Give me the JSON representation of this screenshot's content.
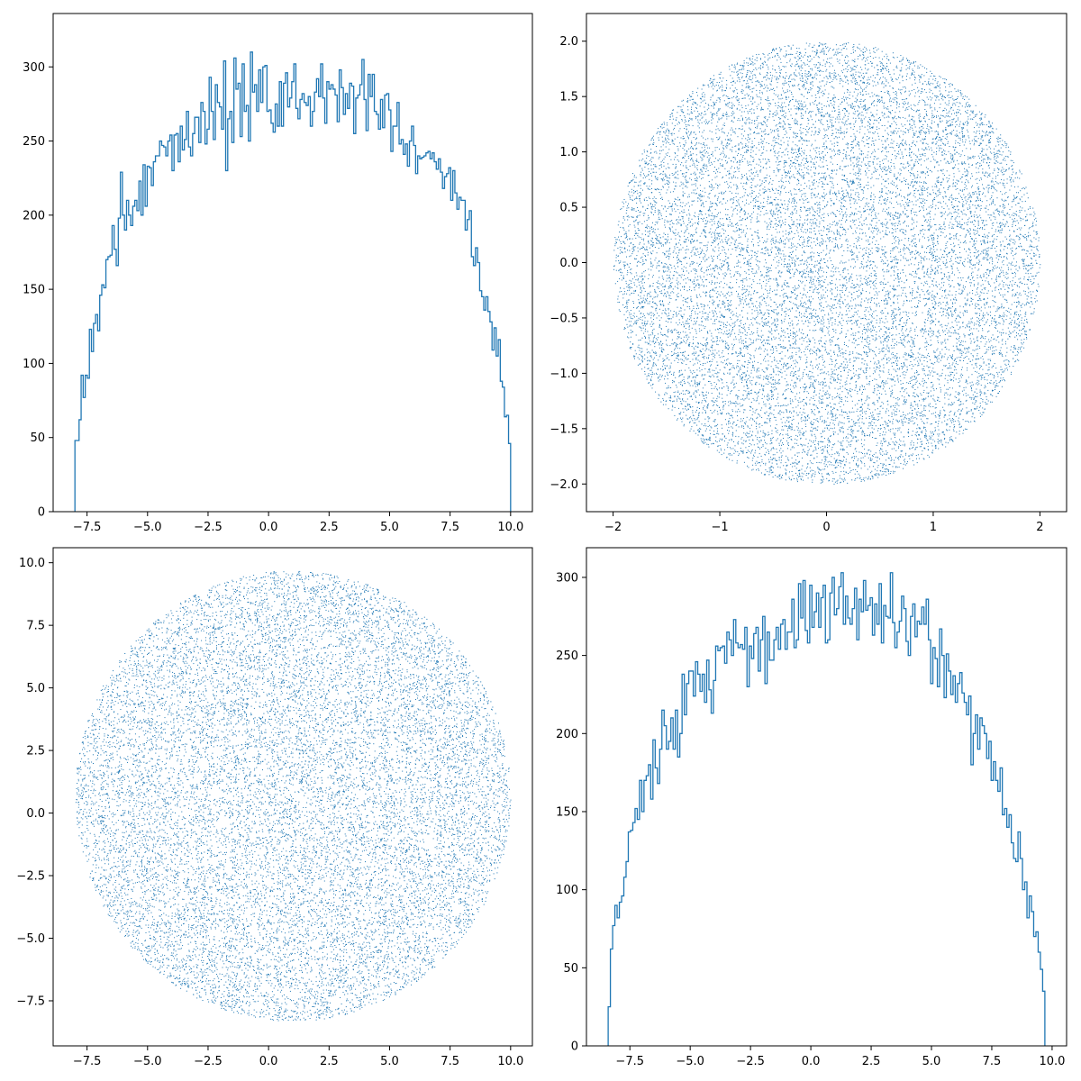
{
  "colors": {
    "series": "#1f77b4",
    "axes": "#000000",
    "background": "#ffffff"
  },
  "chart_data": [
    {
      "type": "histogram",
      "id": "top-left",
      "title": "",
      "xlabel": "",
      "ylabel": "",
      "grid": false,
      "xlim": [
        -8.9,
        10.9
      ],
      "ylim": [
        0,
        336
      ],
      "xticks": [
        -7.5,
        -5.0,
        -2.5,
        0.0,
        2.5,
        5.0,
        7.5,
        10.0
      ],
      "xtick_labels": [
        "−7.5",
        "−5.0",
        "−2.5",
        "0.0",
        "2.5",
        "5.0",
        "7.5",
        "10.0"
      ],
      "yticks": [
        0,
        50,
        100,
        150,
        200,
        250,
        300
      ],
      "ytick_labels": [
        "0",
        "50",
        "100",
        "150",
        "200",
        "250",
        "300"
      ],
      "bin_range": [
        -8.0,
        10.0
      ],
      "counts": [
        48,
        48,
        62,
        92,
        77,
        92,
        90,
        123,
        108,
        127,
        133,
        122,
        146,
        153,
        151,
        170,
        172,
        173,
        193,
        177,
        166,
        198,
        229,
        200,
        190,
        210,
        200,
        193,
        206,
        210,
        203,
        223,
        200,
        234,
        206,
        233,
        232,
        220,
        236,
        240,
        240,
        250,
        247,
        246,
        240,
        250,
        254,
        230,
        254,
        255,
        236,
        260,
        244,
        251,
        270,
        246,
        240,
        255,
        266,
        266,
        249,
        276,
        270,
        248,
        258,
        293,
        270,
        251,
        288,
        276,
        273,
        258,
        304,
        230,
        265,
        270,
        249,
        306,
        285,
        289,
        253,
        302,
        270,
        274,
        250,
        310,
        283,
        288,
        270,
        298,
        276,
        300,
        301,
        270,
        271,
        262,
        256,
        275,
        260,
        290,
        260,
        289,
        296,
        273,
        279,
        290,
        302,
        272,
        265,
        278,
        282,
        276,
        274,
        280,
        260,
        270,
        283,
        292,
        280,
        302,
        279,
        262,
        290,
        285,
        288,
        285,
        281,
        263,
        298,
        286,
        268,
        282,
        272,
        289,
        287,
        255,
        279,
        281,
        288,
        305,
        278,
        257,
        295,
        280,
        295,
        270,
        268,
        258,
        278,
        259,
        281,
        282,
        271,
        243,
        260,
        260,
        276,
        248,
        251,
        241,
        248,
        233,
        250,
        260,
        247,
        228,
        240,
        238,
        239,
        240,
        242,
        243,
        238,
        242,
        236,
        231,
        238,
        229,
        218,
        226,
        228,
        232,
        210,
        230,
        215,
        204,
        212,
        210,
        210,
        190,
        197,
        203,
        172,
        166,
        178,
        168,
        149,
        145,
        136,
        145,
        135,
        128,
        109,
        124,
        105,
        116,
        88,
        84,
        64,
        65,
        46
      ]
    },
    {
      "type": "scatter",
      "id": "top-right",
      "title": "",
      "xlabel": "",
      "ylabel": "",
      "grid": false,
      "xlim": [
        -2.25,
        2.25
      ],
      "ylim": [
        -2.25,
        2.25
      ],
      "xticks": [
        -2,
        -1,
        0,
        1,
        2
      ],
      "xtick_labels": [
        "−2",
        "−1",
        "0",
        "1",
        "2"
      ],
      "yticks": [
        -2.0,
        -1.5,
        -1.0,
        -0.5,
        0.0,
        0.5,
        1.0,
        1.5,
        2.0
      ],
      "ytick_labels": [
        "−2.0",
        "−1.5",
        "−1.0",
        "−0.5",
        "0.0",
        "0.5",
        "1.0",
        "1.5",
        "2.0"
      ],
      "points": "uniform random points filling a disk",
      "disk": {
        "center": [
          0.0,
          0.0
        ],
        "radius": 2.0
      },
      "marker": "pixel"
    },
    {
      "type": "scatter",
      "id": "bottom-left",
      "title": "",
      "xlabel": "",
      "ylabel": "",
      "grid": false,
      "xlim": [
        -8.9,
        10.9
      ],
      "ylim": [
        -9.3,
        10.6
      ],
      "xticks": [
        -7.5,
        -5.0,
        -2.5,
        0.0,
        2.5,
        5.0,
        7.5,
        10.0
      ],
      "xtick_labels": [
        "−7.5",
        "−5.0",
        "−2.5",
        "0.0",
        "2.5",
        "5.0",
        "7.5",
        "10.0"
      ],
      "yticks": [
        -7.5,
        -5.0,
        -2.5,
        0.0,
        2.5,
        5.0,
        7.5,
        10.0
      ],
      "ytick_labels": [
        "−7.5",
        "−5.0",
        "−2.5",
        "0.0",
        "2.5",
        "5.0",
        "7.5",
        "10.0"
      ],
      "points": "uniform random points filling a disk",
      "disk": {
        "center": [
          1.0,
          0.7
        ],
        "radius": 9.0
      },
      "marker": "pixel"
    },
    {
      "type": "histogram",
      "id": "bottom-right",
      "title": "",
      "xlabel": "",
      "ylabel": "",
      "grid": false,
      "xlim": [
        -9.3,
        10.6
      ],
      "ylim": [
        0,
        319
      ],
      "xticks": [
        -7.5,
        -5.0,
        -2.5,
        0.0,
        2.5,
        5.0,
        7.5,
        10.0
      ],
      "xtick_labels": [
        "−7.5",
        "−5.0",
        "−2.5",
        "0.0",
        "2.5",
        "5.0",
        "7.5",
        "10.0"
      ],
      "yticks": [
        0,
        50,
        100,
        150,
        200,
        250,
        300
      ],
      "ytick_labels": [
        "0",
        "50",
        "100",
        "150",
        "200",
        "250",
        "300"
      ],
      "bin_range": [
        -8.4,
        9.7
      ],
      "counts": [
        25,
        62,
        77,
        90,
        82,
        92,
        96,
        108,
        118,
        137,
        138,
        143,
        152,
        145,
        170,
        150,
        170,
        173,
        180,
        158,
        196,
        178,
        168,
        190,
        215,
        205,
        190,
        195,
        210,
        190,
        215,
        185,
        200,
        238,
        212,
        232,
        240,
        240,
        224,
        246,
        238,
        227,
        238,
        220,
        247,
        228,
        213,
        234,
        256,
        253,
        255,
        256,
        245,
        265,
        260,
        250,
        273,
        258,
        255,
        257,
        254,
        268,
        230,
        256,
        248,
        264,
        268,
        240,
        260,
        275,
        232,
        265,
        247,
        247,
        260,
        268,
        254,
        270,
        273,
        254,
        265,
        265,
        286,
        255,
        260,
        296,
        274,
        298,
        266,
        258,
        295,
        268,
        278,
        290,
        268,
        287,
        295,
        258,
        260,
        290,
        300,
        276,
        280,
        294,
        303,
        270,
        288,
        274,
        270,
        280,
        293,
        260,
        286,
        278,
        298,
        279,
        282,
        287,
        263,
        283,
        270,
        296,
        258,
        282,
        275,
        274,
        303,
        271,
        255,
        265,
        272,
        288,
        280,
        259,
        250,
        275,
        283,
        262,
        272,
        270,
        281,
        270,
        286,
        260,
        232,
        255,
        248,
        230,
        267,
        250,
        223,
        251,
        240,
        225,
        237,
        220,
        232,
        239,
        226,
        220,
        212,
        224,
        180,
        200,
        212,
        190,
        210,
        205,
        200,
        184,
        195,
        170,
        182,
        170,
        163,
        178,
        148,
        152,
        140,
        148,
        130,
        120,
        118,
        137,
        120,
        100,
        105,
        82,
        96,
        86,
        70,
        73,
        60,
        49,
        35
      ]
    }
  ]
}
